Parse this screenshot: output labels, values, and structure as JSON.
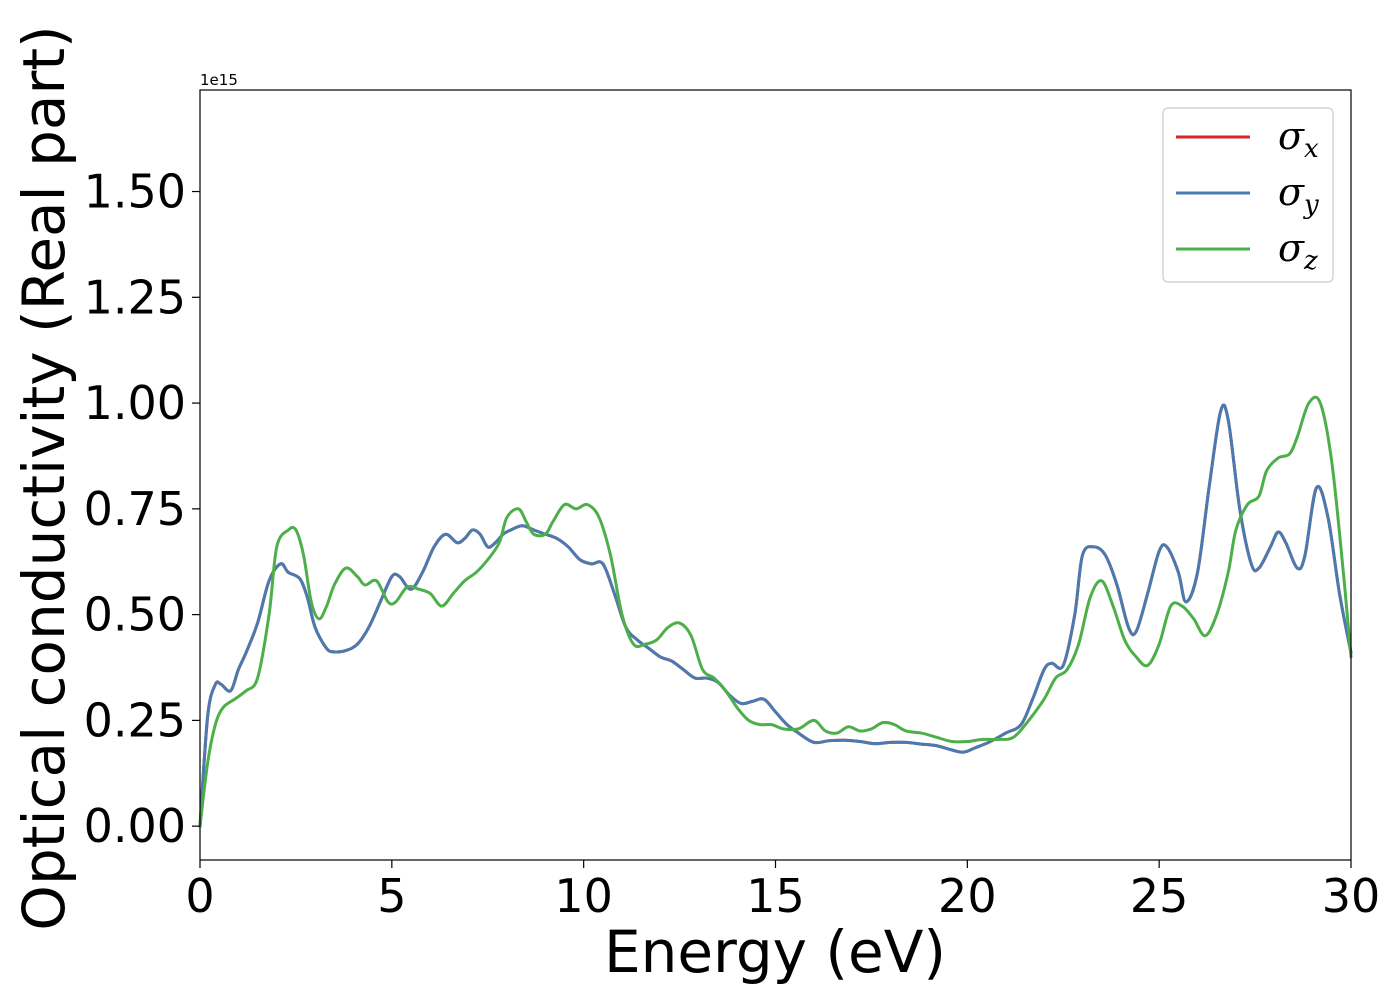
{
  "chart_data": {
    "type": "line",
    "title": "",
    "xlabel": "Energy (eV)",
    "ylabel": "Optical conductivity (Real part)",
    "y_offset_label": "1e15",
    "xlim": [
      0,
      30
    ],
    "ylim": [
      -0.08,
      1.74
    ],
    "xticks": [
      0,
      5,
      10,
      15,
      20,
      25,
      30
    ],
    "xtick_labels": [
      "0",
      "5",
      "10",
      "15",
      "20",
      "25",
      "30"
    ],
    "yticks": [
      0.0,
      0.25,
      0.5,
      0.75,
      1.0,
      1.25,
      1.5
    ],
    "ytick_labels": [
      "0.00",
      "0.25",
      "0.50",
      "0.75",
      "1.00",
      "1.25",
      "1.50"
    ],
    "grid": false,
    "legend_position": "top-right",
    "series": [
      {
        "name": "σx",
        "symbol": "σ",
        "subscript": "x",
        "color": "#d62728",
        "x": [
          0,
          0.2,
          0.4,
          0.55,
          0.8,
          1.0,
          1.2,
          1.5,
          1.8,
          2.1,
          2.3,
          2.6,
          2.8,
          3.0,
          3.3,
          3.5,
          3.8,
          4.1,
          4.4,
          4.7,
          5.0,
          5.2,
          5.5,
          5.8,
          6.1,
          6.4,
          6.7,
          6.9,
          7.1,
          7.3,
          7.5,
          7.7,
          7.9,
          8.1,
          8.4,
          8.7,
          9.0,
          9.3,
          9.6,
          9.9,
          10.2,
          10.5,
          10.8,
          11.1,
          11.4,
          11.7,
          12.0,
          12.3,
          12.6,
          12.9,
          13.2,
          13.5,
          13.8,
          14.1,
          14.4,
          14.7,
          15.0,
          15.3,
          15.6,
          16.0,
          16.4,
          16.8,
          17.2,
          17.6,
          18.0,
          18.4,
          18.8,
          19.2,
          19.6,
          19.9,
          20.2,
          20.6,
          21.0,
          21.4,
          21.7,
          22.0,
          22.2,
          22.5,
          22.8,
          23.0,
          23.3,
          23.6,
          23.9,
          24.2,
          24.4,
          24.7,
          25.0,
          25.2,
          25.5,
          25.7,
          26.0,
          26.3,
          26.6,
          26.8,
          27.1,
          27.4,
          27.6,
          27.9,
          28.1,
          28.3,
          28.6,
          28.8,
          29.1,
          29.4,
          29.7,
          30.0
        ],
        "values": [
          0.0,
          0.26,
          0.335,
          0.335,
          0.32,
          0.37,
          0.41,
          0.48,
          0.58,
          0.62,
          0.6,
          0.585,
          0.54,
          0.47,
          0.42,
          0.412,
          0.415,
          0.43,
          0.47,
          0.53,
          0.59,
          0.59,
          0.56,
          0.6,
          0.66,
          0.69,
          0.67,
          0.68,
          0.7,
          0.69,
          0.66,
          0.67,
          0.69,
          0.7,
          0.71,
          0.7,
          0.69,
          0.68,
          0.66,
          0.63,
          0.62,
          0.62,
          0.55,
          0.47,
          0.44,
          0.42,
          0.4,
          0.39,
          0.37,
          0.35,
          0.35,
          0.34,
          0.31,
          0.29,
          0.295,
          0.3,
          0.27,
          0.24,
          0.22,
          0.198,
          0.202,
          0.203,
          0.2,
          0.195,
          0.198,
          0.198,
          0.194,
          0.19,
          0.18,
          0.175,
          0.185,
          0.2,
          0.22,
          0.24,
          0.3,
          0.37,
          0.385,
          0.38,
          0.5,
          0.64,
          0.66,
          0.64,
          0.57,
          0.47,
          0.46,
          0.55,
          0.65,
          0.66,
          0.6,
          0.53,
          0.6,
          0.8,
          0.98,
          0.96,
          0.75,
          0.62,
          0.61,
          0.66,
          0.695,
          0.67,
          0.61,
          0.64,
          0.8,
          0.73,
          0.55,
          0.41
        ]
      },
      {
        "name": "σy",
        "symbol": "σ",
        "subscript": "y",
        "color": "#4a7bb0",
        "x": [
          0,
          0.2,
          0.4,
          0.55,
          0.8,
          1.0,
          1.2,
          1.5,
          1.8,
          2.1,
          2.3,
          2.6,
          2.8,
          3.0,
          3.3,
          3.5,
          3.8,
          4.1,
          4.4,
          4.7,
          5.0,
          5.2,
          5.5,
          5.8,
          6.1,
          6.4,
          6.7,
          6.9,
          7.1,
          7.3,
          7.5,
          7.7,
          7.9,
          8.1,
          8.4,
          8.7,
          9.0,
          9.3,
          9.6,
          9.9,
          10.2,
          10.5,
          10.8,
          11.1,
          11.4,
          11.7,
          12.0,
          12.3,
          12.6,
          12.9,
          13.2,
          13.5,
          13.8,
          14.1,
          14.4,
          14.7,
          15.0,
          15.3,
          15.6,
          16.0,
          16.4,
          16.8,
          17.2,
          17.6,
          18.0,
          18.4,
          18.8,
          19.2,
          19.6,
          19.9,
          20.2,
          20.6,
          21.0,
          21.4,
          21.7,
          22.0,
          22.2,
          22.5,
          22.8,
          23.0,
          23.3,
          23.6,
          23.9,
          24.2,
          24.4,
          24.7,
          25.0,
          25.2,
          25.5,
          25.7,
          26.0,
          26.3,
          26.6,
          26.8,
          27.1,
          27.4,
          27.6,
          27.9,
          28.1,
          28.3,
          28.6,
          28.8,
          29.1,
          29.4,
          29.7,
          30.0
        ],
        "values": [
          0.0,
          0.26,
          0.335,
          0.335,
          0.32,
          0.37,
          0.41,
          0.48,
          0.58,
          0.62,
          0.6,
          0.585,
          0.54,
          0.47,
          0.42,
          0.412,
          0.415,
          0.43,
          0.47,
          0.53,
          0.59,
          0.59,
          0.56,
          0.6,
          0.66,
          0.69,
          0.67,
          0.68,
          0.7,
          0.69,
          0.66,
          0.67,
          0.69,
          0.7,
          0.71,
          0.7,
          0.69,
          0.68,
          0.66,
          0.63,
          0.62,
          0.62,
          0.55,
          0.47,
          0.44,
          0.42,
          0.4,
          0.39,
          0.37,
          0.35,
          0.35,
          0.34,
          0.31,
          0.29,
          0.295,
          0.3,
          0.27,
          0.24,
          0.22,
          0.198,
          0.202,
          0.203,
          0.2,
          0.195,
          0.198,
          0.198,
          0.194,
          0.19,
          0.18,
          0.175,
          0.185,
          0.2,
          0.22,
          0.24,
          0.3,
          0.37,
          0.385,
          0.38,
          0.5,
          0.64,
          0.66,
          0.64,
          0.57,
          0.47,
          0.46,
          0.55,
          0.65,
          0.66,
          0.6,
          0.53,
          0.6,
          0.8,
          0.98,
          0.96,
          0.75,
          0.62,
          0.61,
          0.66,
          0.695,
          0.67,
          0.61,
          0.64,
          0.8,
          0.73,
          0.55,
          0.41
        ]
      },
      {
        "name": "σz",
        "symbol": "σ",
        "subscript": "z",
        "color": "#4daf4a",
        "x": [
          0,
          0.2,
          0.4,
          0.6,
          0.9,
          1.2,
          1.5,
          1.8,
          2.0,
          2.3,
          2.5,
          2.7,
          2.9,
          3.1,
          3.3,
          3.5,
          3.8,
          4.1,
          4.3,
          4.6,
          4.9,
          5.1,
          5.4,
          5.7,
          6.0,
          6.3,
          6.6,
          6.9,
          7.2,
          7.5,
          7.8,
          8.0,
          8.3,
          8.5,
          8.7,
          9.0,
          9.2,
          9.5,
          9.8,
          10.1,
          10.4,
          10.7,
          11.0,
          11.3,
          11.6,
          11.9,
          12.2,
          12.5,
          12.8,
          13.1,
          13.4,
          13.7,
          14.0,
          14.3,
          14.6,
          14.9,
          15.2,
          15.6,
          16.0,
          16.3,
          16.6,
          16.9,
          17.2,
          17.5,
          17.8,
          18.1,
          18.4,
          18.8,
          19.2,
          19.6,
          20.0,
          20.4,
          20.8,
          21.2,
          21.6,
          22.0,
          22.3,
          22.6,
          22.9,
          23.2,
          23.5,
          23.8,
          24.1,
          24.4,
          24.7,
          25.0,
          25.3,
          25.6,
          25.9,
          26.2,
          26.5,
          26.8,
          27.0,
          27.3,
          27.6,
          27.8,
          28.1,
          28.4,
          28.6,
          28.9,
          29.2,
          29.5,
          29.8,
          30.0
        ],
        "values": [
          0.0,
          0.15,
          0.24,
          0.28,
          0.3,
          0.32,
          0.35,
          0.5,
          0.66,
          0.7,
          0.7,
          0.64,
          0.53,
          0.49,
          0.52,
          0.57,
          0.61,
          0.59,
          0.57,
          0.58,
          0.53,
          0.53,
          0.565,
          0.56,
          0.55,
          0.52,
          0.55,
          0.58,
          0.6,
          0.63,
          0.67,
          0.73,
          0.75,
          0.72,
          0.69,
          0.69,
          0.72,
          0.76,
          0.75,
          0.76,
          0.73,
          0.64,
          0.5,
          0.43,
          0.43,
          0.44,
          0.47,
          0.48,
          0.45,
          0.37,
          0.35,
          0.32,
          0.28,
          0.25,
          0.24,
          0.24,
          0.23,
          0.23,
          0.25,
          0.225,
          0.22,
          0.235,
          0.225,
          0.23,
          0.245,
          0.24,
          0.225,
          0.22,
          0.21,
          0.2,
          0.2,
          0.205,
          0.205,
          0.21,
          0.25,
          0.3,
          0.35,
          0.37,
          0.43,
          0.54,
          0.58,
          0.52,
          0.44,
          0.4,
          0.38,
          0.43,
          0.52,
          0.52,
          0.49,
          0.45,
          0.5,
          0.6,
          0.7,
          0.76,
          0.78,
          0.84,
          0.87,
          0.88,
          0.92,
          1.0,
          1.0,
          0.86,
          0.6,
          0.4
        ]
      }
    ]
  }
}
